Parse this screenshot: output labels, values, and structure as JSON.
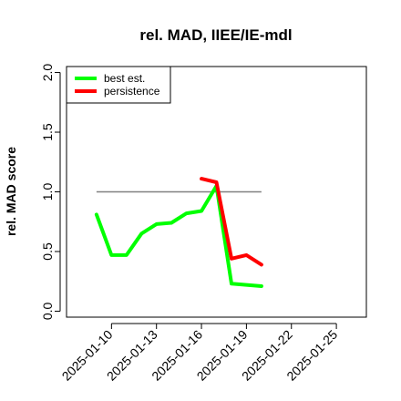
{
  "chart_data": {
    "type": "line",
    "title": "rel. MAD, IIEE/IE-mdl",
    "xlabel": "",
    "ylabel": "rel. MAD score",
    "xlim": [
      "2025-01-07",
      "2025-01-27"
    ],
    "ylim": [
      -0.05,
      2.05
    ],
    "x_ticks": [
      "2025-01-10",
      "2025-01-13",
      "2025-01-16",
      "2025-01-19",
      "2025-01-22",
      "2025-01-25"
    ],
    "y_ticks": [
      "0.0",
      "0.5",
      "1.0",
      "1.5",
      "2.0"
    ],
    "legend_position": "top-left",
    "grid": false,
    "reference_line": {
      "y": 1.0,
      "x_from": "2025-01-09",
      "x_to": "2025-01-20",
      "color": "#808080"
    },
    "series": [
      {
        "name": "best est.",
        "color": "#00ff00",
        "x": [
          "2025-01-09",
          "2025-01-10",
          "2025-01-11",
          "2025-01-12",
          "2025-01-13",
          "2025-01-14",
          "2025-01-15",
          "2025-01-16",
          "2025-01-17",
          "2025-01-18",
          "2025-01-20"
        ],
        "values": [
          0.81,
          0.47,
          0.47,
          0.65,
          0.73,
          0.74,
          0.82,
          0.84,
          1.05,
          0.23,
          0.21
        ]
      },
      {
        "name": "persistence",
        "color": "#ff0000",
        "x": [
          "2025-01-16",
          "2025-01-17",
          "2025-01-18",
          "2025-01-19",
          "2025-01-20"
        ],
        "values": [
          1.11,
          1.08,
          0.44,
          0.47,
          0.39
        ]
      }
    ]
  }
}
